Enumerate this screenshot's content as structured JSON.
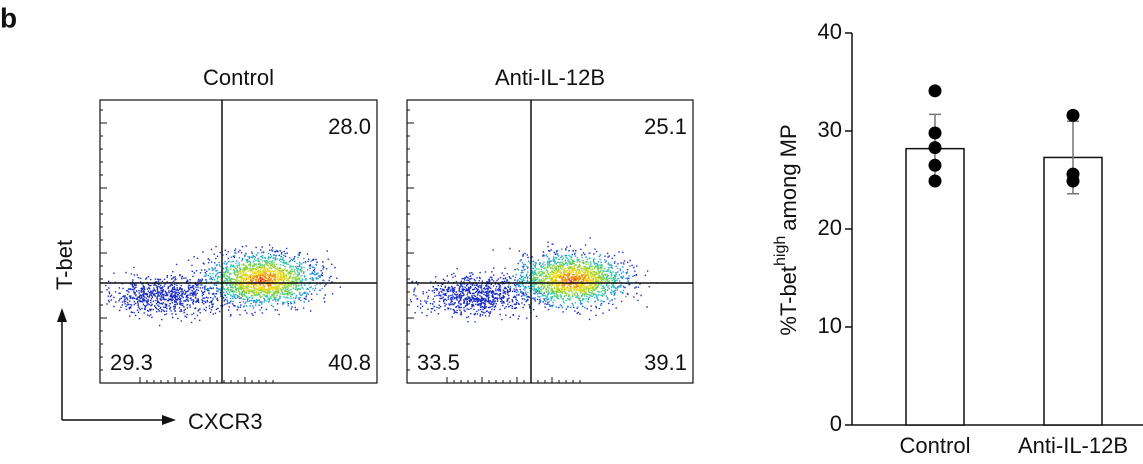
{
  "panel_label": "b",
  "flow_plots": [
    {
      "title": "Control",
      "upper_right": "28.0",
      "lower_left": "29.3",
      "lower_right": "40.8"
    },
    {
      "title": "Anti-IL-12B",
      "upper_right": "25.1",
      "lower_left": "33.5",
      "lower_right": "39.1"
    }
  ],
  "flow_axes": {
    "y": "T-bet",
    "x": "CXCR3"
  },
  "chart_data": {
    "type": "bar",
    "ylabel": [
      "%T-bet",
      "high",
      "among MP"
    ],
    "categories": [
      "Control",
      "Anti-IL-12B"
    ],
    "values": [
      28.2,
      27.3
    ],
    "errors": [
      3.5,
      3.7
    ],
    "points": [
      [
        34.1,
        29.8,
        28.3,
        26.5,
        24.9
      ],
      [
        31.6,
        25.6,
        24.9
      ]
    ],
    "color": "#ffffff",
    "point_color": "#000000",
    "ylim": [
      0,
      40
    ],
    "yticks": [
      0,
      10,
      20,
      30,
      40
    ]
  }
}
